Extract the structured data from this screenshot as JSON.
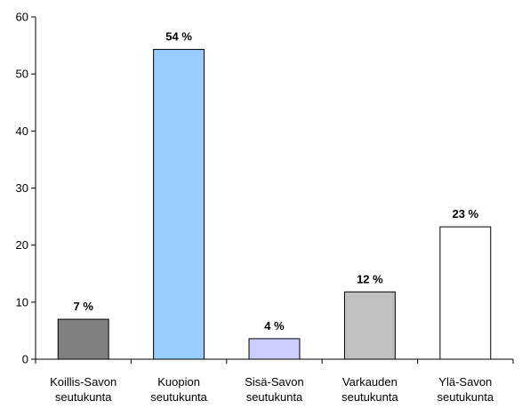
{
  "chart_data": {
    "type": "bar",
    "title": "",
    "xlabel": "",
    "ylabel": "",
    "ylim": [
      0,
      60
    ],
    "yticks": [
      0,
      10,
      20,
      30,
      40,
      50,
      60
    ],
    "grid": false,
    "legend": "none",
    "categories": [
      [
        "Koillis-Savon",
        "seutukunta"
      ],
      [
        "Kuopion",
        "seutukunta"
      ],
      [
        "Sisä-Savon",
        "seutukunta"
      ],
      [
        "Varkauden",
        "seutukunta"
      ],
      [
        "Ylä-Savon",
        "seutukunta"
      ]
    ],
    "values": [
      7,
      54.3,
      3.6,
      11.8,
      23.2
    ],
    "data_labels": [
      "7 %",
      "54 %",
      "4 %",
      "12 %",
      "23 %"
    ],
    "colors": [
      "#808080",
      "#99ccff",
      "#ccccff",
      "#c0c0c0",
      "#ffffff"
    ]
  }
}
